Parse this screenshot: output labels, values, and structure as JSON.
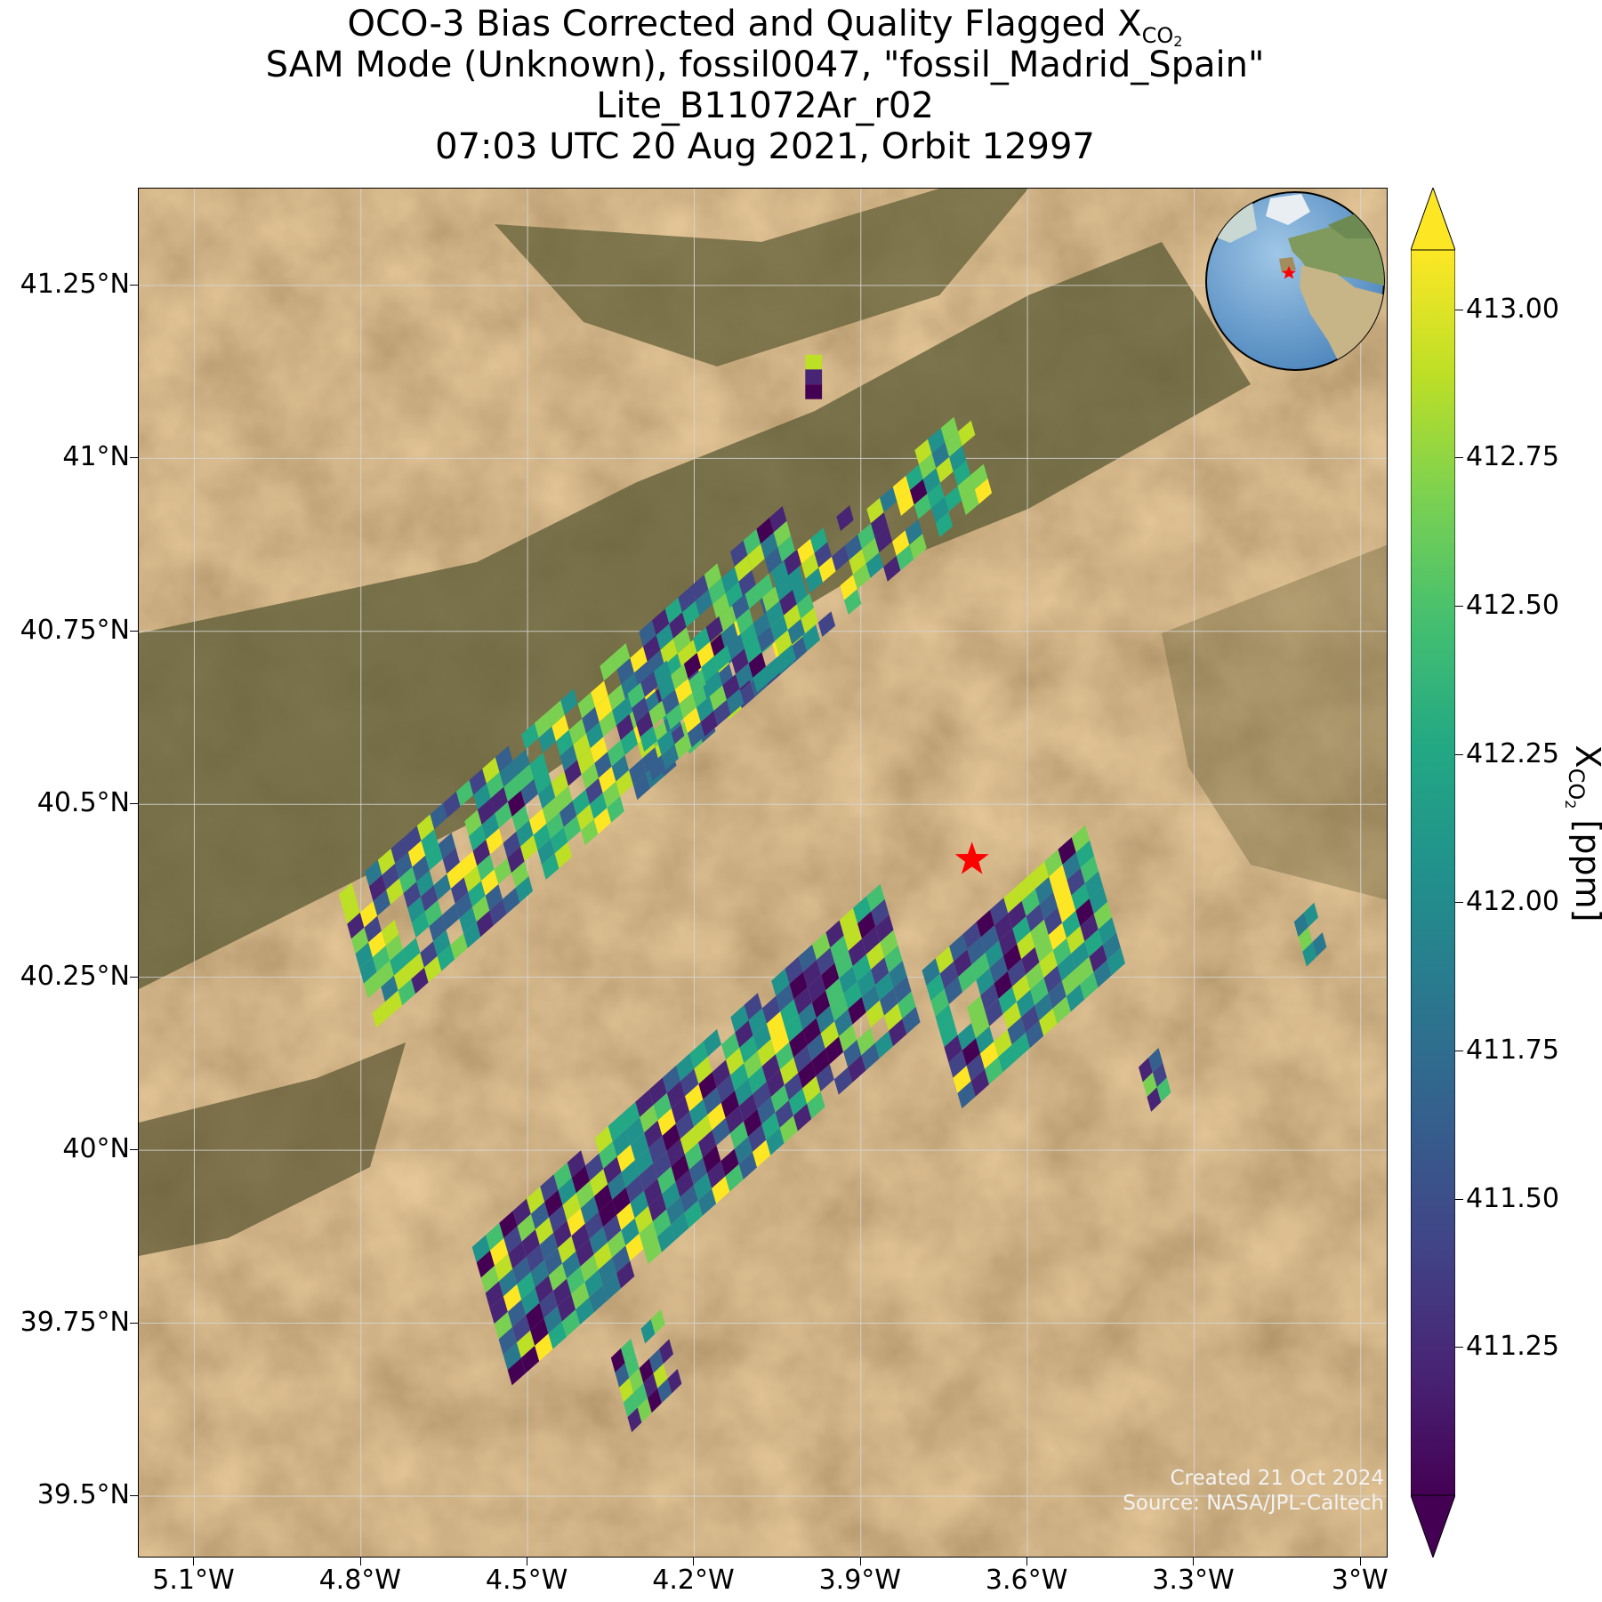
{
  "title": {
    "line1_prefix": "OCO-3 Bias Corrected and Quality Flagged X",
    "line1_sub": "CO",
    "line1_sub2": "2",
    "line2": "SAM Mode (Unknown), fossil0047, \"fossil_Madrid_Spain\"",
    "line3": "Lite_B11072Ar_r02",
    "line4": "07:03 UTC 20 Aug 2021, Orbit 12997"
  },
  "map": {
    "lat_ticks": [
      "41.25°N",
      "41°N",
      "40.75°N",
      "40.5°N",
      "40.25°N",
      "40°N",
      "39.75°N",
      "39.5°N"
    ],
    "lon_ticks": [
      "5.1°W",
      "4.8°W",
      "4.5°W",
      "4.2°W",
      "3.9°W",
      "3.6°W",
      "3.3°W",
      "3°W"
    ],
    "lat_values": [
      41.25,
      41.0,
      40.75,
      40.5,
      40.25,
      40.0,
      39.75,
      39.5
    ],
    "lon_values": [
      -5.1,
      -4.8,
      -4.5,
      -4.2,
      -3.9,
      -3.6,
      -3.3,
      -3.0
    ],
    "lon_range": [
      -5.2,
      -2.95
    ],
    "lat_range": [
      39.41,
      41.39
    ],
    "gridlines": true,
    "basemap": "satellite imagery (arid tan terrain, dark green mountain ridges)",
    "target_marker": {
      "lon": -3.7,
      "lat": 40.42,
      "color": "#ff0000",
      "icon": "star-icon"
    }
  },
  "credit": {
    "line1": "Created 21 Oct 2024",
    "line2": "Source: NASA/JPL-Caltech"
  },
  "colorbar": {
    "colormap": "viridis",
    "min": 411.0,
    "max": 413.1,
    "extend": "both",
    "ticks": [
      "413.00",
      "412.75",
      "412.50",
      "412.25",
      "412.00",
      "411.75",
      "411.50",
      "411.25"
    ],
    "tick_values": [
      413.0,
      412.75,
      412.5,
      412.25,
      412.0,
      411.75,
      411.5,
      411.25
    ],
    "label_prefix": "X",
    "label_sub": "CO",
    "label_sub2": "2",
    "label_suffix": " [ppm]"
  },
  "inset_globe": {
    "icon": "globe-icon",
    "highlight": "Spain",
    "marker_color": "#ff0000"
  },
  "chart_data": {
    "type": "heatmap",
    "variable": "XCO2",
    "units": "ppm",
    "value_range": [
      411.0,
      413.1
    ],
    "swaths": [
      {
        "center_lon": -3.55,
        "center_lat": 40.45,
        "note": "eastern swath, mixed values centred near 412 ppm"
      },
      {
        "center_lon": -4.05,
        "center_lat": 40.12,
        "note": "southern swath, many low (purple) and mid (teal) soundings"
      },
      {
        "center_lon": -4.15,
        "center_lat": 40.5,
        "note": "northwestern swath, more high (yellow) soundings"
      }
    ]
  }
}
